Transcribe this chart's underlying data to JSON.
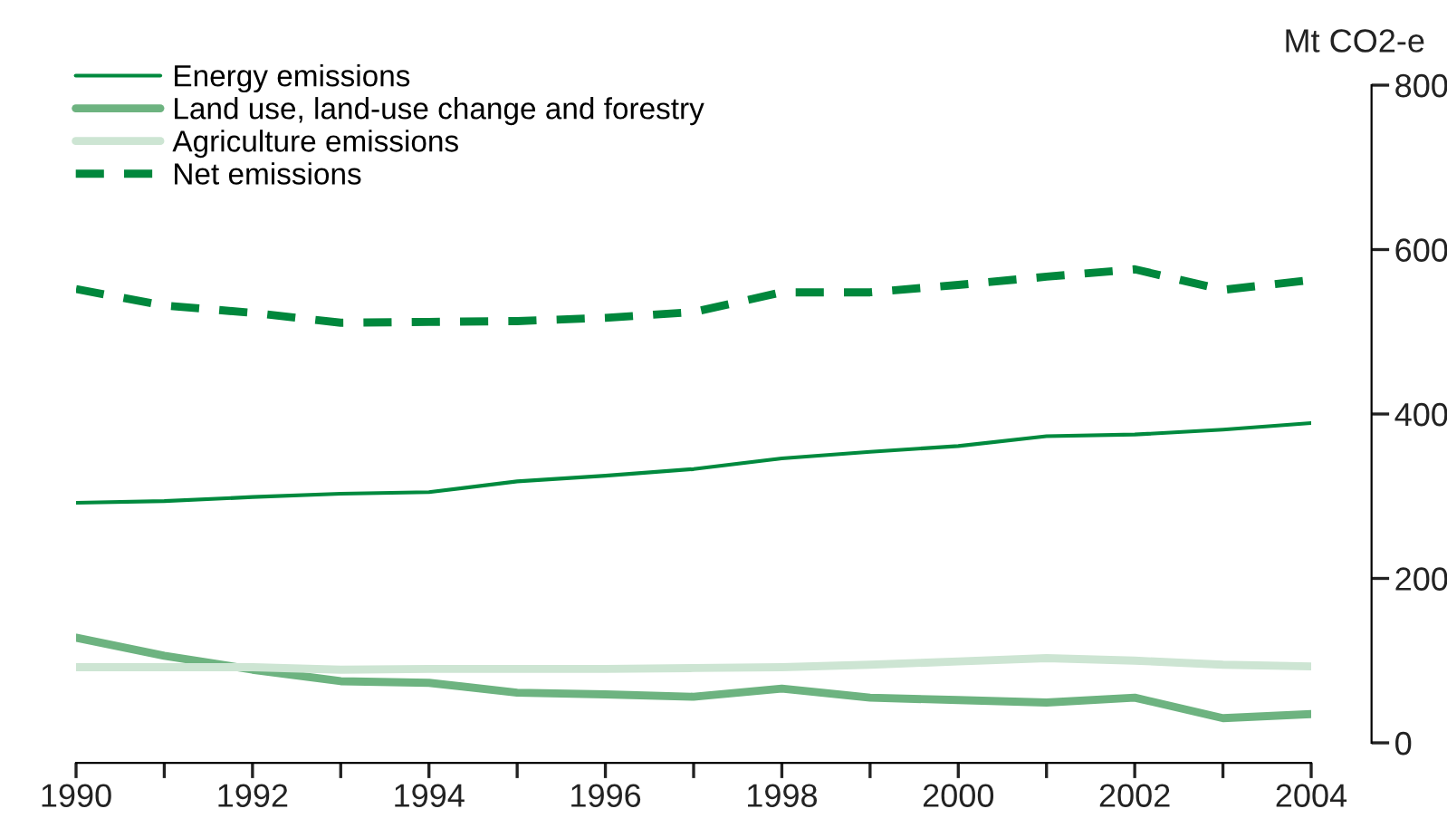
{
  "chart_data": {
    "type": "line",
    "ylabel": "Mt CO2-e",
    "x": [
      1990,
      1991,
      1992,
      1993,
      1994,
      1995,
      1996,
      1997,
      1998,
      1999,
      2000,
      2001,
      2002,
      2003,
      2004
    ],
    "xlim": [
      1990,
      2004
    ],
    "xticks": [
      1990,
      {
        "value": 1991,
        "label": null
      },
      1992,
      {
        "value": 1993,
        "label": null
      },
      1994,
      {
        "value": 1995,
        "label": null
      },
      1996,
      {
        "value": 1997,
        "label": null
      },
      1998,
      {
        "value": 1999,
        "label": null
      },
      2000,
      {
        "value": 2001,
        "label": null
      },
      2002,
      {
        "value": 2003,
        "label": null
      },
      2004
    ],
    "ylim": [
      0,
      800
    ],
    "yticks": [
      0,
      200,
      400,
      600,
      800
    ],
    "legend": "top left",
    "series": [
      {
        "name": "Energy emissions",
        "color": "#008a3e",
        "line_style": "solid",
        "values": [
          292,
          294,
          299,
          303,
          305,
          318,
          325,
          333,
          346,
          354,
          361,
          373,
          375,
          381,
          389
        ]
      },
      {
        "name": "Land use, land-use change and forestry",
        "color": "#6db380",
        "line_style": "solid",
        "values": [
          128,
          106,
          89,
          75,
          73,
          61,
          59,
          56,
          66,
          55,
          52,
          49,
          55,
          30,
          35
        ]
      },
      {
        "name": "Agriculture emissions",
        "color": "#cde5d3",
        "line_style": "solid",
        "values": [
          92,
          92,
          92,
          89,
          90,
          90,
          90,
          91,
          92,
          95,
          99,
          103,
          100,
          95,
          93
        ]
      },
      {
        "name": "Net emissions",
        "color": "#00873c",
        "line_style": "dashed",
        "values": [
          552,
          532,
          523,
          511,
          512,
          513,
          517,
          524,
          548,
          548,
          557,
          567,
          576,
          551,
          563
        ]
      }
    ]
  }
}
